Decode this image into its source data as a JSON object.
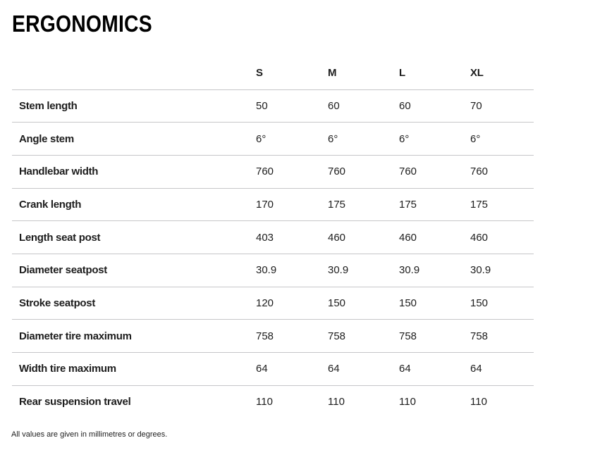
{
  "section": {
    "title": "ERGONOMICS",
    "footnote": "All values are given in millimetres or degrees."
  },
  "colors": {
    "text": "#1d1d1d",
    "title": "#000000",
    "separator": "#c6c6c8",
    "background": "#ffffff"
  },
  "table": {
    "columns": [
      "S",
      "M",
      "L",
      "XL"
    ],
    "rows": [
      {
        "label": "Stem length",
        "values": [
          "50",
          "60",
          "60",
          "70"
        ]
      },
      {
        "label": "Angle stem",
        "values": [
          "6°",
          "6°",
          "6°",
          "6°"
        ]
      },
      {
        "label": "Handlebar width",
        "values": [
          "760",
          "760",
          "760",
          "760"
        ]
      },
      {
        "label": "Crank length",
        "values": [
          "170",
          "175",
          "175",
          "175"
        ]
      },
      {
        "label": "Length seat post",
        "values": [
          "403",
          "460",
          "460",
          "460"
        ]
      },
      {
        "label": "Diameter seatpost",
        "values": [
          "30.9",
          "30.9",
          "30.9",
          "30.9"
        ]
      },
      {
        "label": "Stroke seatpost",
        "values": [
          "120",
          "150",
          "150",
          "150"
        ]
      },
      {
        "label": "Diameter tire maximum",
        "values": [
          "758",
          "758",
          "758",
          "758"
        ]
      },
      {
        "label": "Width tire maximum",
        "values": [
          "64",
          "64",
          "64",
          "64"
        ]
      },
      {
        "label": "Rear suspension travel",
        "values": [
          "110",
          "110",
          "110",
          "110"
        ]
      }
    ]
  }
}
